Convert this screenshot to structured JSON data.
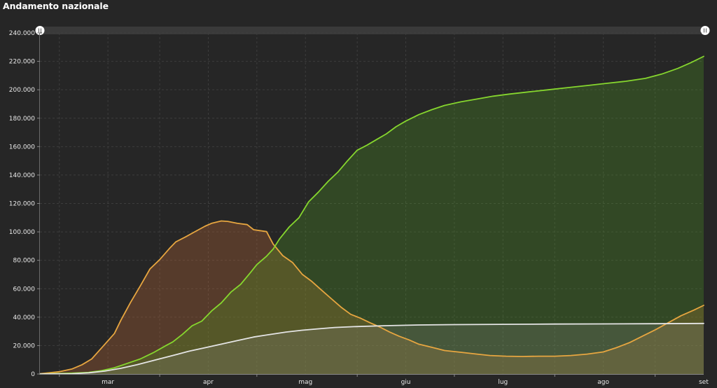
{
  "header": {
    "title": "Andamento nazionale"
  },
  "colors": {
    "background": "#262626",
    "scrollbar": "#3a3a3a",
    "orange_line": "#e7a640",
    "orange_fill": "rgba(200,110,55,0.30)",
    "green_line": "#86d62e",
    "green_fill": "rgba(86,170,36,0.26)",
    "white_line": "#e4e4e4",
    "white_fill": "rgba(150,150,150,0.20)"
  },
  "chart_data": {
    "type": "area",
    "title": "Andamento nazionale",
    "xlabel": "",
    "ylabel": "",
    "ylim": [
      0,
      240000
    ],
    "yticks": [
      0,
      20000,
      40000,
      60000,
      80000,
      100000,
      120000,
      140000,
      160000,
      180000,
      200000,
      220000,
      240000
    ],
    "ytick_labels": [
      "0",
      "20.000",
      "40.000",
      "60.000",
      "80.000",
      "100.000",
      "120.000",
      "140.000",
      "160.000",
      "180.000",
      "200.000",
      "220.000",
      "240.000"
    ],
    "xlim": [
      "2020-02-24",
      "2020-09-16"
    ],
    "month_labels": [
      {
        "label": "mar",
        "date": "2020-03-16"
      },
      {
        "label": "apr",
        "date": "2020-04-16"
      },
      {
        "label": "mag",
        "date": "2020-05-16"
      },
      {
        "label": "giu",
        "date": "2020-06-16"
      },
      {
        "label": "lug",
        "date": "2020-07-16"
      },
      {
        "label": "ago",
        "date": "2020-08-16"
      },
      {
        "label": "set",
        "date": "2020-09-16"
      }
    ],
    "month_starts": [
      "2020-03-01",
      "2020-04-01",
      "2020-05-01",
      "2020-06-01",
      "2020-07-01",
      "2020-08-01",
      "2020-09-01"
    ],
    "grid": true,
    "legend": "none",
    "series": [
      {
        "color": "#e7a640",
        "fill": "rgba(200,110,55,0.30)",
        "points": [
          [
            "2020-02-24",
            200
          ],
          [
            "2020-03-01",
            1600
          ],
          [
            "2020-03-05",
            3600
          ],
          [
            "2020-03-08",
            6500
          ],
          [
            "2020-03-11",
            10600
          ],
          [
            "2020-03-15",
            20800
          ],
          [
            "2020-03-18",
            28500
          ],
          [
            "2020-03-20",
            37800
          ],
          [
            "2020-03-23",
            50400
          ],
          [
            "2020-03-26",
            62000
          ],
          [
            "2020-03-29",
            73900
          ],
          [
            "2020-04-01",
            80500
          ],
          [
            "2020-04-04",
            88300
          ],
          [
            "2020-04-06",
            93000
          ],
          [
            "2020-04-09",
            96500
          ],
          [
            "2020-04-12",
            100300
          ],
          [
            "2020-04-15",
            104000
          ],
          [
            "2020-04-17",
            106000
          ],
          [
            "2020-04-20",
            107700
          ],
          [
            "2020-04-22",
            107400
          ],
          [
            "2020-04-25",
            106000
          ],
          [
            "2020-04-28",
            105100
          ],
          [
            "2020-04-30",
            101500
          ],
          [
            "2020-05-04",
            100200
          ],
          [
            "2020-05-06",
            91500
          ],
          [
            "2020-05-09",
            83300
          ],
          [
            "2020-05-12",
            78500
          ],
          [
            "2020-05-15",
            70200
          ],
          [
            "2020-05-18",
            65100
          ],
          [
            "2020-05-21",
            59000
          ],
          [
            "2020-05-24",
            53000
          ],
          [
            "2020-05-27",
            47000
          ],
          [
            "2020-05-30",
            42000
          ],
          [
            "2020-06-02",
            39300
          ],
          [
            "2020-06-05",
            36000
          ],
          [
            "2020-06-08",
            33000
          ],
          [
            "2020-06-11",
            29500
          ],
          [
            "2020-06-14",
            26500
          ],
          [
            "2020-06-17",
            24000
          ],
          [
            "2020-06-20",
            21000
          ],
          [
            "2020-06-24",
            18800
          ],
          [
            "2020-06-28",
            16500
          ],
          [
            "2020-07-03",
            15300
          ],
          [
            "2020-07-08",
            14000
          ],
          [
            "2020-07-12",
            13000
          ],
          [
            "2020-07-17",
            12500
          ],
          [
            "2020-07-22",
            12300
          ],
          [
            "2020-07-27",
            12500
          ],
          [
            "2020-08-01",
            12500
          ],
          [
            "2020-08-06",
            13000
          ],
          [
            "2020-08-11",
            14000
          ],
          [
            "2020-08-16",
            15500
          ],
          [
            "2020-08-20",
            18500
          ],
          [
            "2020-08-24",
            22000
          ],
          [
            "2020-08-28",
            26500
          ],
          [
            "2020-09-01",
            31000
          ],
          [
            "2020-09-05",
            36000
          ],
          [
            "2020-09-09",
            41000
          ],
          [
            "2020-09-13",
            45000
          ],
          [
            "2020-09-16",
            48300
          ]
        ]
      },
      {
        "color": "#86d62e",
        "fill": "rgba(86,170,36,0.26)",
        "points": [
          [
            "2020-02-24",
            0
          ],
          [
            "2020-03-05",
            600
          ],
          [
            "2020-03-10",
            1100
          ],
          [
            "2020-03-14",
            2300
          ],
          [
            "2020-03-18",
            4400
          ],
          [
            "2020-03-22",
            7500
          ],
          [
            "2020-03-26",
            10600
          ],
          [
            "2020-03-30",
            15000
          ],
          [
            "2020-04-03",
            20100
          ],
          [
            "2020-04-05",
            22500
          ],
          [
            "2020-04-08",
            27900
          ],
          [
            "2020-04-11",
            33900
          ],
          [
            "2020-04-14",
            37200
          ],
          [
            "2020-04-17",
            44300
          ],
          [
            "2020-04-20",
            50000
          ],
          [
            "2020-04-23",
            57600
          ],
          [
            "2020-04-26",
            63100
          ],
          [
            "2020-04-29",
            71300
          ],
          [
            "2020-05-01",
            77000
          ],
          [
            "2020-05-04",
            82900
          ],
          [
            "2020-05-06",
            87800
          ],
          [
            "2020-05-08",
            95000
          ],
          [
            "2020-05-11",
            103500
          ],
          [
            "2020-05-14",
            110000
          ],
          [
            "2020-05-17",
            121200
          ],
          [
            "2020-05-20",
            128000
          ],
          [
            "2020-05-23",
            135500
          ],
          [
            "2020-05-26",
            142000
          ],
          [
            "2020-05-29",
            150000
          ],
          [
            "2020-06-01",
            157500
          ],
          [
            "2020-06-04",
            161000
          ],
          [
            "2020-06-07",
            165000
          ],
          [
            "2020-06-10",
            169000
          ],
          [
            "2020-06-13",
            174000
          ],
          [
            "2020-06-16",
            178000
          ],
          [
            "2020-06-20",
            182500
          ],
          [
            "2020-06-24",
            186000
          ],
          [
            "2020-06-28",
            189000
          ],
          [
            "2020-07-03",
            191500
          ],
          [
            "2020-07-08",
            193500
          ],
          [
            "2020-07-13",
            195500
          ],
          [
            "2020-07-18",
            197000
          ],
          [
            "2020-07-24",
            198500
          ],
          [
            "2020-07-30",
            200000
          ],
          [
            "2020-08-05",
            201500
          ],
          [
            "2020-08-11",
            203000
          ],
          [
            "2020-08-17",
            204500
          ],
          [
            "2020-08-23",
            206000
          ],
          [
            "2020-08-29",
            208000
          ],
          [
            "2020-09-03",
            211000
          ],
          [
            "2020-09-08",
            215000
          ],
          [
            "2020-09-12",
            219000
          ],
          [
            "2020-09-16",
            223500
          ]
        ]
      },
      {
        "color": "#e4e4e4",
        "fill": "rgba(150,150,150,0.20)",
        "points": [
          [
            "2020-02-24",
            0
          ],
          [
            "2020-03-05",
            200
          ],
          [
            "2020-03-10",
            800
          ],
          [
            "2020-03-15",
            2000
          ],
          [
            "2020-03-20",
            4000
          ],
          [
            "2020-03-25",
            6500
          ],
          [
            "2020-03-30",
            9500
          ],
          [
            "2020-04-05",
            13000
          ],
          [
            "2020-04-10",
            16000
          ],
          [
            "2020-04-15",
            18500
          ],
          [
            "2020-04-20",
            21000
          ],
          [
            "2020-04-25",
            23500
          ],
          [
            "2020-04-30",
            26000
          ],
          [
            "2020-05-05",
            27800
          ],
          [
            "2020-05-10",
            29500
          ],
          [
            "2020-05-15",
            30800
          ],
          [
            "2020-05-20",
            31800
          ],
          [
            "2020-05-25",
            32700
          ],
          [
            "2020-05-31",
            33300
          ],
          [
            "2020-06-10",
            34000
          ],
          [
            "2020-06-20",
            34500
          ],
          [
            "2020-07-01",
            34750
          ],
          [
            "2020-07-15",
            34950
          ],
          [
            "2020-08-01",
            35150
          ],
          [
            "2020-08-15",
            35250
          ],
          [
            "2020-09-01",
            35400
          ],
          [
            "2020-09-16",
            35600
          ]
        ]
      }
    ]
  }
}
